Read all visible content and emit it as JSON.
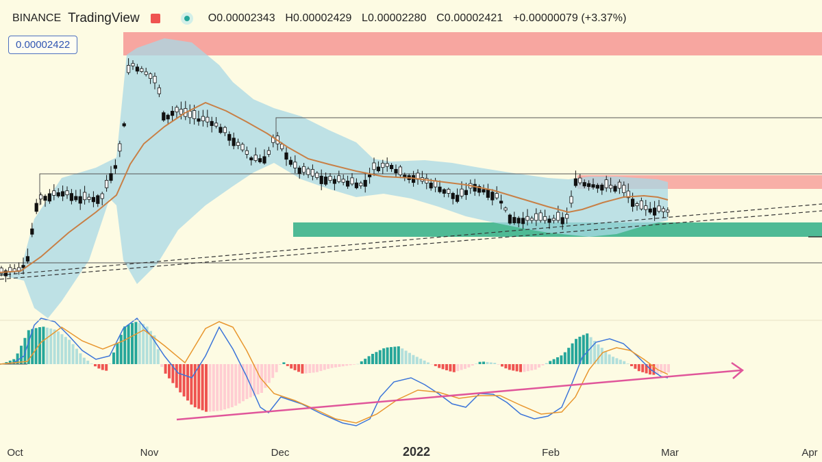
{
  "header": {
    "symbol": "BINANCE",
    "source": "TradingView",
    "open_label": "O",
    "open": "0.00002343",
    "high_label": "H",
    "high": "0.00002429",
    "low_label": "L",
    "low": "0.00002280",
    "close_label": "C",
    "close": "0.00002421",
    "change": "+0.00000079 (+3.37%)",
    "price_box": "0.00002422"
  },
  "colors": {
    "background": "#fdfbe3",
    "up_candle": "#ffffff",
    "down_candle": "#111111",
    "moving_average": "#c87f45",
    "bollinger_fill": "#a8d8e6",
    "supply_zone": "#f7a6a0",
    "demand_zone": "#4fba95",
    "macd_line": "#3b74d9",
    "signal_line": "#e8962e",
    "hist_pos_strong": "#26a69a",
    "hist_pos_weak": "#b2dfdb",
    "hist_neg_strong": "#ef5350",
    "hist_neg_weak": "#ffcdd2",
    "trendline": "#e0559a"
  },
  "chart_data": [
    {
      "type": "candlestick",
      "x_tick_labels": [
        "Oct",
        "Nov",
        "Dec",
        "2022",
        "Feb",
        "Mar",
        "Apr"
      ],
      "x_range": [
        "2021-10-01",
        "2022-04-01"
      ],
      "y_axis_visible": false,
      "overlays": [
        "moving average",
        "bollinger bands",
        "supply zones",
        "demand zone",
        "dashed trendlines"
      ],
      "ohlc_last": {
        "open": 2.343e-05,
        "high": 2.429e-05,
        "low": 2.28e-05,
        "close": 2.421e-05
      },
      "grid": false
    },
    {
      "type": "histogram",
      "indicator": "MACD",
      "series": [
        {
          "values_color": "#3b74d9"
        },
        {
          "values_color": "#e8962e"
        }
      ],
      "annotations": [
        "rising pink arrow trendline under histogram lows"
      ]
    }
  ]
}
